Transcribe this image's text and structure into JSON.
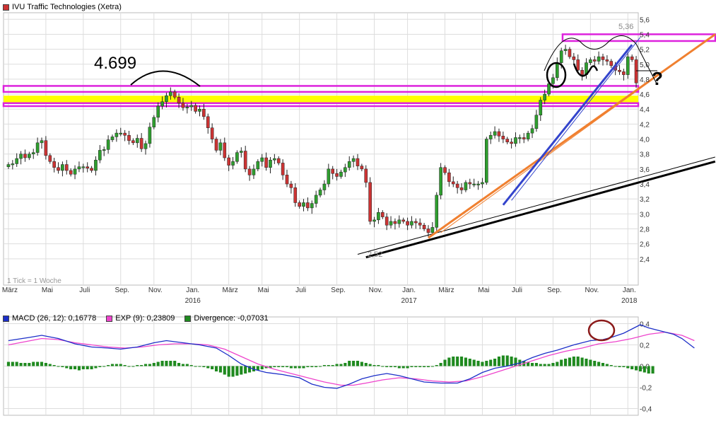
{
  "header": {
    "title": "IVU Traffic Technologies (Xetra)",
    "title_color": "#cc3333"
  },
  "footer_note": "1 Tick = 1 Woche",
  "annotations": {
    "peak_label": "4.699",
    "low_label": "2,52",
    "high_label": "5,36",
    "question_mark": "?"
  },
  "colors": {
    "up": "#2e9e2e",
    "down": "#cc3333",
    "macd": "#1c2fc8",
    "signal": "#ee44cc",
    "divergence": "#1f8a1f",
    "magenta_band": "#dd22dd",
    "yellow_band": "#ffff00",
    "blue_line": "#3344cc",
    "orange_line": "#f08030",
    "black_line": "#000000",
    "circle": "#8b1a1a",
    "grid": "#dddddd"
  },
  "chart_data": [
    {
      "type": "candlestick",
      "title": "IVU Traffic Technologies (Xetra)",
      "y_ticks": [
        "2,4",
        "2,6",
        "2,8",
        "3,0",
        "3,2",
        "3,4",
        "3,6",
        "3,8",
        "4,0",
        "4,2",
        "4,4",
        "4,6",
        "4,8",
        "5,0",
        "5,2",
        "5,4",
        "5,6"
      ],
      "y_tick_values": [
        2.4,
        2.6,
        2.8,
        3.0,
        3.2,
        3.4,
        3.6,
        3.8,
        4.0,
        4.2,
        4.4,
        4.6,
        4.8,
        5.0,
        5.2,
        5.4,
        5.6
      ],
      "ylim": [
        2.2,
        5.65
      ],
      "x_labels": [
        {
          "label": "März",
          "week": 0
        },
        {
          "label": "Mai",
          "week": 9
        },
        {
          "label": "Juli",
          "week": 18
        },
        {
          "label": "Sep.",
          "week": 27
        },
        {
          "label": "Nov.",
          "week": 35
        },
        {
          "label": "Jan.",
          "week": 44
        },
        {
          "label": "März",
          "week": 53
        },
        {
          "label": "Mai",
          "week": 61
        },
        {
          "label": "Juli",
          "week": 70
        },
        {
          "label": "Sep.",
          "week": 79
        },
        {
          "label": "Nov.",
          "week": 88
        },
        {
          "label": "Jan.",
          "week": 96
        },
        {
          "label": "März",
          "week": 105
        },
        {
          "label": "Mai",
          "week": 114
        },
        {
          "label": "Juli",
          "week": 122
        },
        {
          "label": "Sep.",
          "week": 131
        },
        {
          "label": "Nov.",
          "week": 140
        },
        {
          "label": "Jan.",
          "week": 149
        }
      ],
      "year_labels": [
        {
          "label": "2016",
          "week": 44
        },
        {
          "label": "2017",
          "week": 96
        },
        {
          "label": "2018",
          "week": 149
        }
      ],
      "weekly_close": [
        3.66,
        3.67,
        3.74,
        3.8,
        3.75,
        3.8,
        3.82,
        3.95,
        3.98,
        3.78,
        3.7,
        3.62,
        3.58,
        3.66,
        3.58,
        3.53,
        3.6,
        3.63,
        3.63,
        3.61,
        3.58,
        3.72,
        3.85,
        3.86,
        3.99,
        4.03,
        4.08,
        4.08,
        4.05,
        3.98,
        3.95,
        4.01,
        3.87,
        3.94,
        4.16,
        4.29,
        4.44,
        4.5,
        4.58,
        4.63,
        4.56,
        4.48,
        4.42,
        4.43,
        4.45,
        4.37,
        4.4,
        4.3,
        4.15,
        4.0,
        3.85,
        3.95,
        3.75,
        3.65,
        3.7,
        3.82,
        3.84,
        3.6,
        3.52,
        3.6,
        3.7,
        3.75,
        3.62,
        3.72,
        3.74,
        3.68,
        3.52,
        3.4,
        3.35,
        3.15,
        3.1,
        3.15,
        3.08,
        3.14,
        3.25,
        3.32,
        3.4,
        3.6,
        3.54,
        3.5,
        3.56,
        3.62,
        3.7,
        3.74,
        3.64,
        3.6,
        3.42,
        2.9,
        2.92,
        3.02,
        2.96,
        2.85,
        2.9,
        2.87,
        2.92,
        2.9,
        2.85,
        2.9,
        2.88,
        2.85,
        2.8,
        2.75,
        2.82,
        3.25,
        3.62,
        3.55,
        3.43,
        3.4,
        3.35,
        3.32,
        3.42,
        3.4,
        3.4,
        3.4,
        3.42,
        4.0,
        4.05,
        4.1,
        4.04,
        4.0,
        3.96,
        3.94,
        4.02,
        4.02,
        4.0,
        4.08,
        4.14,
        4.32,
        4.52,
        4.6,
        4.74,
        4.82,
        5.02,
        5.18,
        5.2,
        5.1,
        5.06,
        4.92,
        4.86,
        5.02,
        5.06,
        5.04,
        5.1,
        5.06,
        5.04,
        4.98,
        4.92,
        4.9,
        4.86,
        5.1,
        5.06,
        4.75
      ],
      "macd_ylim": [
        -0.45,
        0.45
      ],
      "macd_ticks": [
        "0,4",
        "0,2",
        "0,0",
        "-0,2",
        "-0,4"
      ],
      "macd_tick_values": [
        0.4,
        0.2,
        0.0,
        -0.2,
        -0.4
      ],
      "macd": {
        "legend": "MACD (26, 12): 0,16778",
        "points": [
          [
            0,
            0.24
          ],
          [
            5,
            0.27
          ],
          [
            8,
            0.29
          ],
          [
            12,
            0.26
          ],
          [
            16,
            0.21
          ],
          [
            20,
            0.18
          ],
          [
            24,
            0.17
          ],
          [
            27,
            0.16
          ],
          [
            31,
            0.18
          ],
          [
            35,
            0.22
          ],
          [
            38,
            0.24
          ],
          [
            42,
            0.22
          ],
          [
            46,
            0.2
          ],
          [
            50,
            0.17
          ],
          [
            53,
            0.1
          ],
          [
            56,
            0.02
          ],
          [
            59,
            -0.03
          ],
          [
            62,
            -0.06
          ],
          [
            66,
            -0.08
          ],
          [
            70,
            -0.11
          ],
          [
            73,
            -0.17
          ],
          [
            76,
            -0.2
          ],
          [
            79,
            -0.21
          ],
          [
            82,
            -0.17
          ],
          [
            85,
            -0.12
          ],
          [
            88,
            -0.09
          ],
          [
            91,
            -0.07
          ],
          [
            94,
            -0.09
          ],
          [
            97,
            -0.12
          ],
          [
            100,
            -0.15
          ],
          [
            104,
            -0.16
          ],
          [
            108,
            -0.16
          ],
          [
            111,
            -0.12
          ],
          [
            114,
            -0.06
          ],
          [
            117,
            -0.02
          ],
          [
            120,
            0.0
          ],
          [
            123,
            0.03
          ],
          [
            126,
            0.08
          ],
          [
            129,
            0.12
          ],
          [
            132,
            0.15
          ],
          [
            136,
            0.2
          ],
          [
            140,
            0.24
          ],
          [
            143,
            0.25
          ],
          [
            145,
            0.27
          ],
          [
            148,
            0.31
          ],
          [
            150,
            0.35
          ],
          [
            152,
            0.39
          ],
          [
            154,
            0.36
          ],
          [
            157,
            0.33
          ],
          [
            160,
            0.3
          ],
          [
            162,
            0.26
          ],
          [
            165,
            0.17
          ]
        ]
      },
      "signal": {
        "legend": "EXP (9): 0,23809",
        "points": [
          [
            0,
            0.2
          ],
          [
            4,
            0.23
          ],
          [
            8,
            0.26
          ],
          [
            12,
            0.25
          ],
          [
            16,
            0.22
          ],
          [
            20,
            0.2
          ],
          [
            24,
            0.18
          ],
          [
            28,
            0.17
          ],
          [
            32,
            0.18
          ],
          [
            36,
            0.2
          ],
          [
            40,
            0.21
          ],
          [
            44,
            0.21
          ],
          [
            48,
            0.2
          ],
          [
            52,
            0.16
          ],
          [
            56,
            0.09
          ],
          [
            60,
            0.02
          ],
          [
            64,
            -0.03
          ],
          [
            68,
            -0.07
          ],
          [
            72,
            -0.11
          ],
          [
            76,
            -0.15
          ],
          [
            80,
            -0.18
          ],
          [
            83,
            -0.18
          ],
          [
            86,
            -0.16
          ],
          [
            90,
            -0.13
          ],
          [
            94,
            -0.11
          ],
          [
            98,
            -0.12
          ],
          [
            102,
            -0.14
          ],
          [
            106,
            -0.15
          ],
          [
            110,
            -0.14
          ],
          [
            114,
            -0.1
          ],
          [
            118,
            -0.05
          ],
          [
            122,
            0.0
          ],
          [
            126,
            0.05
          ],
          [
            130,
            0.1
          ],
          [
            134,
            0.14
          ],
          [
            138,
            0.17
          ],
          [
            142,
            0.21
          ],
          [
            146,
            0.23
          ],
          [
            150,
            0.26
          ],
          [
            154,
            0.3
          ],
          [
            158,
            0.32
          ],
          [
            162,
            0.29
          ],
          [
            165,
            0.24
          ]
        ]
      },
      "divergence": {
        "legend": "Divergence: -0,07031",
        "values": [
          0.04,
          0.04,
          0.04,
          0.03,
          0.03,
          0.03,
          0.04,
          0.04,
          0.04,
          0.03,
          0.02,
          0.01,
          0.0,
          -0.01,
          -0.02,
          -0.03,
          -0.03,
          -0.04,
          -0.03,
          -0.03,
          -0.03,
          -0.02,
          -0.01,
          0.0,
          0.01,
          0.02,
          0.02,
          0.02,
          0.01,
          0.0,
          0.0,
          0.01,
          0.01,
          0.02,
          0.02,
          0.03,
          0.04,
          0.05,
          0.05,
          0.05,
          0.05,
          0.03,
          0.02,
          0.02,
          0.01,
          0.0,
          0.0,
          -0.01,
          -0.02,
          -0.03,
          -0.05,
          -0.06,
          -0.08,
          -0.1,
          -0.1,
          -0.09,
          -0.08,
          -0.07,
          -0.06,
          -0.05,
          -0.04,
          -0.03,
          -0.02,
          -0.02,
          -0.01,
          -0.01,
          -0.01,
          -0.01,
          -0.02,
          -0.02,
          -0.02,
          -0.02,
          -0.01,
          -0.01,
          -0.01,
          0.0,
          0.01,
          0.01,
          0.01,
          0.02,
          0.02,
          0.03,
          0.05,
          0.05,
          0.05,
          0.04,
          0.03,
          0.02,
          0.01,
          0.01,
          0.0,
          -0.01,
          -0.01,
          -0.01,
          -0.02,
          -0.02,
          -0.02,
          -0.01,
          -0.01,
          -0.01,
          -0.01,
          -0.01,
          0.0,
          0.01,
          0.03,
          0.06,
          0.08,
          0.09,
          0.09,
          0.09,
          0.08,
          0.07,
          0.06,
          0.05,
          0.04,
          0.05,
          0.06,
          0.07,
          0.09,
          0.1,
          0.1,
          0.09,
          0.08,
          0.06,
          0.05,
          0.04,
          0.03,
          0.03,
          0.02,
          0.02,
          0.02,
          0.03,
          0.04,
          0.06,
          0.07,
          0.08,
          0.09,
          0.09,
          0.08,
          0.07,
          0.06,
          0.05,
          0.04,
          0.03,
          0.02,
          0.01,
          0.0,
          -0.01,
          -0.01,
          -0.02,
          -0.03,
          -0.04,
          -0.05,
          -0.06,
          -0.07,
          -0.07
        ]
      },
      "bands": [
        {
          "color": "magenta",
          "low": 5.31,
          "high": 5.4,
          "from_week": 135
        },
        {
          "color": "magenta",
          "low": 4.63,
          "high": 4.71,
          "from_week": 0
        },
        {
          "color": "yellow",
          "low": 4.48,
          "high": 4.58,
          "from_week": 0
        },
        {
          "color": "magenta",
          "low": 4.44,
          "high": 4.48,
          "from_week": 0
        }
      ],
      "trendlines": [
        {
          "color": "black",
          "from": [
            86,
            2.42
          ],
          "to": [
            170,
            3.7
          ],
          "width": 3
        },
        {
          "color": "black",
          "from": [
            84,
            2.46
          ],
          "to": [
            170,
            3.76
          ],
          "width": 1
        },
        {
          "color": "orange",
          "from": [
            101,
            2.68
          ],
          "to": [
            172,
            5.4
          ],
          "width": 3
        },
        {
          "color": "orange",
          "from": [
            104,
            2.75
          ],
          "to": [
            170,
            5.4
          ],
          "width": 1
        },
        {
          "color": "blue",
          "from": [
            119,
            3.12
          ],
          "to": [
            150,
            5.26
          ],
          "width": 3
        },
        {
          "color": "blue",
          "from": [
            121,
            3.18
          ],
          "to": [
            152,
            5.36
          ],
          "width": 1
        }
      ]
    }
  ]
}
